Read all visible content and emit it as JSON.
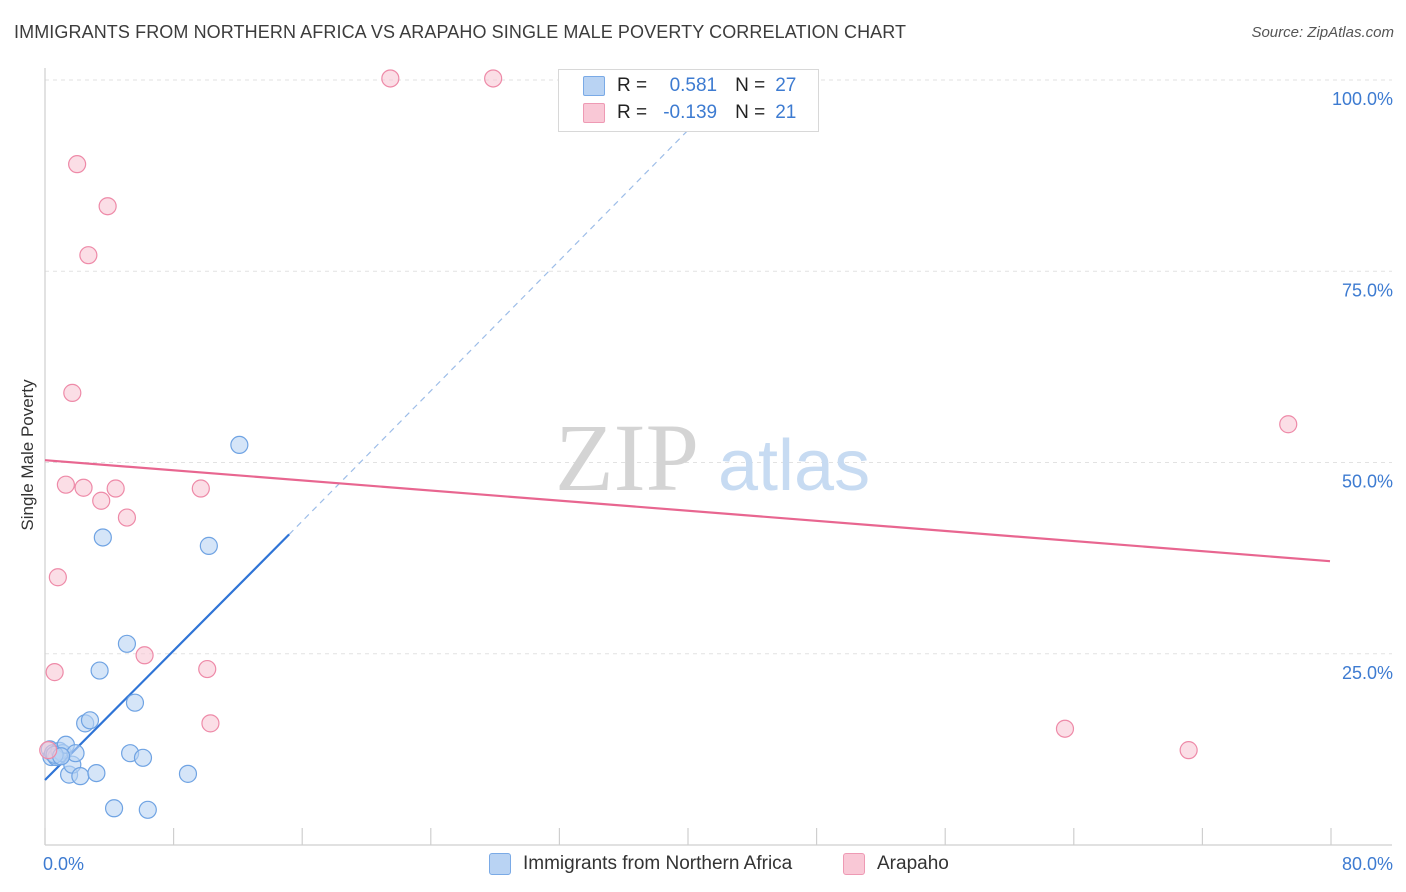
{
  "header": {
    "title": "IMMIGRANTS FROM NORTHERN AFRICA VS ARAPAHO SINGLE MALE POVERTY CORRELATION CHART",
    "source": "Source: ZipAtlas.com"
  },
  "watermark": {
    "zip": "ZIP",
    "atlas": "atlas"
  },
  "legend": {
    "r_label": "R =",
    "n_label": "N =",
    "rows": [
      {
        "r": "0.581",
        "n": "27"
      },
      {
        "r": "-0.139",
        "n": "21"
      }
    ]
  },
  "colors": {
    "blue_fill": "#b9d3f3",
    "blue_stroke": "#6fa3e3",
    "blue_line": "#2f74d6",
    "pink_fill": "#f9c8d6",
    "pink_stroke": "#ee8aa8",
    "pink_line": "#e86690",
    "axis_text": "#3d7bd1",
    "grid": "#e2e2e2"
  },
  "chart_data": {
    "type": "scatter",
    "title": "IMMIGRANTS FROM NORTHERN AFRICA VS ARAPAHO SINGLE MALE POVERTY CORRELATION CHART",
    "xlabel": "",
    "ylabel": "Single Male Poverty",
    "xlim": [
      0,
      80
    ],
    "ylim": [
      0,
      100
    ],
    "y_ticks": [
      {
        "value": 25,
        "label": "25.0%"
      },
      {
        "value": 50,
        "label": "50.0%"
      },
      {
        "value": 75,
        "label": "75.0%"
      },
      {
        "value": 100,
        "label": "100.0%"
      }
    ],
    "x_tick_labels": {
      "min": "0.0%",
      "max": "80.0%"
    },
    "series": [
      {
        "name": "Immigrants from Northern Africa",
        "color": "blue",
        "points": [
          [
            0.3,
            12.5
          ],
          [
            0.4,
            11.5
          ],
          [
            0.5,
            12.0
          ],
          [
            0.7,
            11.5
          ],
          [
            0.9,
            12.3
          ],
          [
            1.1,
            12.0
          ],
          [
            1.3,
            13.1
          ],
          [
            1.5,
            9.2
          ],
          [
            1.7,
            10.5
          ],
          [
            1.9,
            12.0
          ],
          [
            2.2,
            9.0
          ],
          [
            2.5,
            15.9
          ],
          [
            2.8,
            16.3
          ],
          [
            3.2,
            9.4
          ],
          [
            3.4,
            22.8
          ],
          [
            3.6,
            40.2
          ],
          [
            4.3,
            4.8
          ],
          [
            5.1,
            26.3
          ],
          [
            5.3,
            12.0
          ],
          [
            5.6,
            18.6
          ],
          [
            6.1,
            11.4
          ],
          [
            6.4,
            4.6
          ],
          [
            8.9,
            9.3
          ],
          [
            10.2,
            39.1
          ],
          [
            12.1,
            52.3
          ],
          [
            0.6,
            11.8
          ],
          [
            1.0,
            11.6
          ]
        ],
        "trend": {
          "x": [
            0,
            15.2
          ],
          "y": [
            8.5,
            40.6
          ],
          "extended_x": [
            15.2,
            41
          ],
          "extended_y": [
            40.6,
            95.5
          ]
        }
      },
      {
        "name": "Arapaho",
        "color": "pink",
        "points": [
          [
            0.2,
            12.4
          ],
          [
            0.6,
            22.6
          ],
          [
            0.8,
            35.0
          ],
          [
            1.3,
            47.1
          ],
          [
            1.7,
            59.1
          ],
          [
            2.0,
            89.0
          ],
          [
            2.4,
            46.7
          ],
          [
            2.7,
            77.1
          ],
          [
            3.5,
            45.0
          ],
          [
            3.9,
            83.5
          ],
          [
            4.4,
            46.6
          ],
          [
            5.1,
            42.8
          ],
          [
            6.2,
            24.8
          ],
          [
            9.7,
            46.6
          ],
          [
            10.1,
            23.0
          ],
          [
            10.3,
            15.9
          ],
          [
            21.5,
            100.2
          ],
          [
            27.9,
            100.2
          ],
          [
            63.5,
            15.2
          ],
          [
            71.2,
            12.4
          ],
          [
            77.4,
            55.0
          ]
        ],
        "trend": {
          "x": [
            0,
            80
          ],
          "y": [
            50.3,
            37.1
          ]
        }
      }
    ]
  },
  "bottom_legend": {
    "series1": "Immigrants from Northern Africa",
    "series2": "Arapaho"
  }
}
